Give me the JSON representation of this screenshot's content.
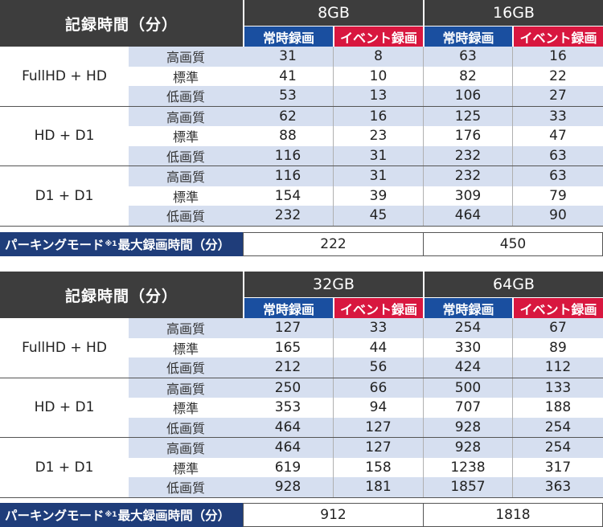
{
  "header_title": "記録時間（分）",
  "mode_regular": "常時録画",
  "mode_event": "イベント録画",
  "quality_labels": [
    "高画質",
    "標準",
    "低画質"
  ],
  "parking_label": "パーキングモード",
  "parking_note": "※1",
  "parking_suffix": "最大録画時間（分）",
  "tables": [
    {
      "capacities": [
        "8GB",
        "16GB"
      ],
      "groups": [
        {
          "resolution": "FullHD + HD",
          "rows": [
            [
              "31",
              "8",
              "63",
              "16"
            ],
            [
              "41",
              "10",
              "82",
              "22"
            ],
            [
              "53",
              "13",
              "106",
              "27"
            ]
          ]
        },
        {
          "resolution": "HD + D1",
          "rows": [
            [
              "62",
              "16",
              "125",
              "33"
            ],
            [
              "88",
              "23",
              "176",
              "47"
            ],
            [
              "116",
              "31",
              "232",
              "63"
            ]
          ]
        },
        {
          "resolution": "D1 + D1",
          "rows": [
            [
              "116",
              "31",
              "232",
              "63"
            ],
            [
              "154",
              "39",
              "309",
              "79"
            ],
            [
              "232",
              "45",
              "464",
              "90"
            ]
          ]
        }
      ],
      "parking_values": [
        "222",
        "450"
      ]
    },
    {
      "capacities": [
        "32GB",
        "64GB"
      ],
      "groups": [
        {
          "resolution": "FullHD + HD",
          "rows": [
            [
              "127",
              "33",
              "254",
              "67"
            ],
            [
              "165",
              "44",
              "330",
              "89"
            ],
            [
              "212",
              "56",
              "424",
              "112"
            ]
          ]
        },
        {
          "resolution": "HD + D1",
          "rows": [
            [
              "250",
              "66",
              "500",
              "133"
            ],
            [
              "353",
              "94",
              "707",
              "188"
            ],
            [
              "464",
              "127",
              "928",
              "254"
            ]
          ]
        },
        {
          "resolution": "D1 + D1",
          "rows": [
            [
              "464",
              "127",
              "928",
              "254"
            ],
            [
              "619",
              "158",
              "1238",
              "317"
            ],
            [
              "928",
              "181",
              "1857",
              "363"
            ]
          ]
        }
      ],
      "parking_values": [
        "912",
        "1818"
      ]
    }
  ]
}
